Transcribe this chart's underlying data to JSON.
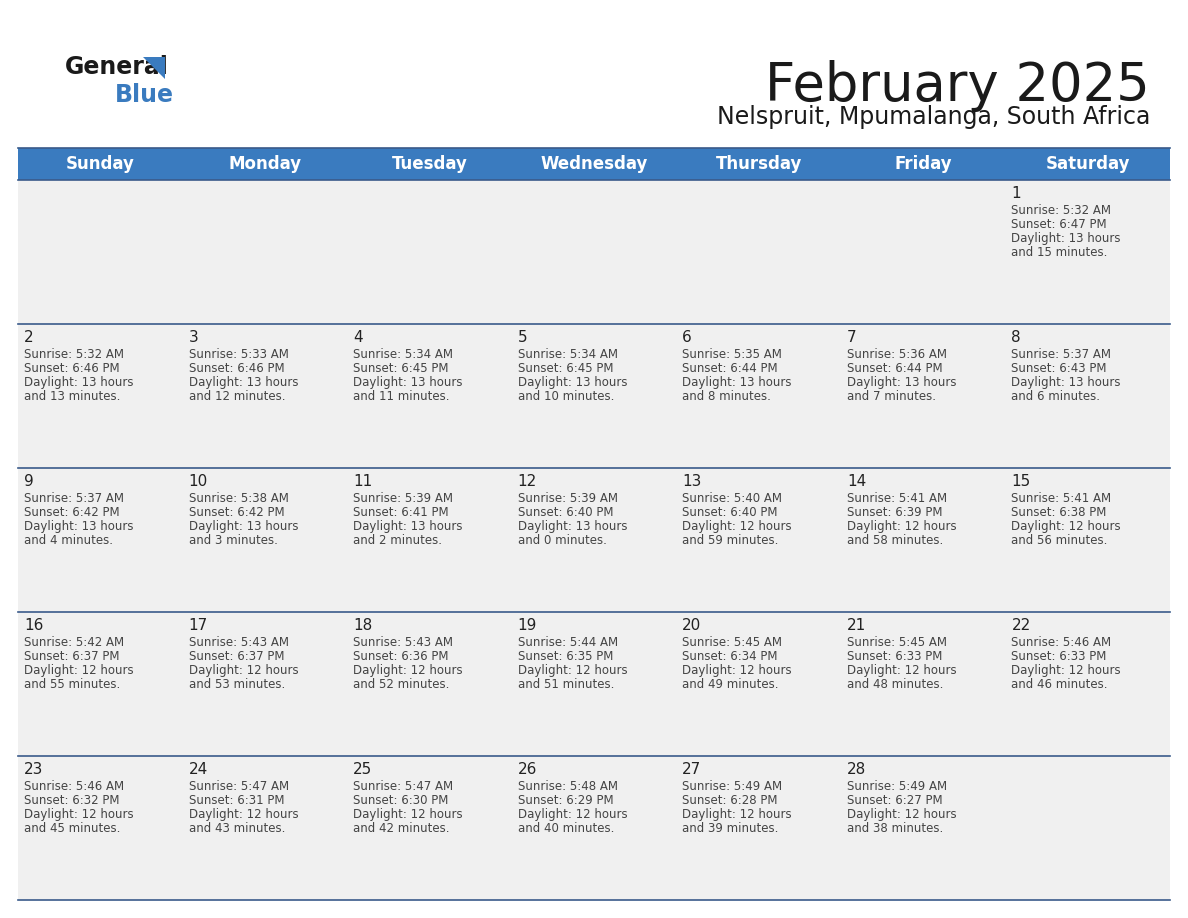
{
  "title": "February 2025",
  "subtitle": "Nelspruit, Mpumalanga, South Africa",
  "header_color": "#3a7bbf",
  "header_text_color": "#ffffff",
  "background_color": "#ffffff",
  "cell_bg": "#f0f0f0",
  "row_separator_color": "#3a5a8a",
  "day_headers": [
    "Sunday",
    "Monday",
    "Tuesday",
    "Wednesday",
    "Thursday",
    "Friday",
    "Saturday"
  ],
  "title_fontsize": 38,
  "subtitle_fontsize": 17,
  "header_fontsize": 12,
  "day_num_fontsize": 11,
  "cell_fontsize": 8.5,
  "days": [
    {
      "day": 1,
      "col": 6,
      "row": 0,
      "sunrise": "5:32 AM",
      "sunset": "6:47 PM",
      "daylight": "13 hours and 15 minutes."
    },
    {
      "day": 2,
      "col": 0,
      "row": 1,
      "sunrise": "5:32 AM",
      "sunset": "6:46 PM",
      "daylight": "13 hours and 13 minutes."
    },
    {
      "day": 3,
      "col": 1,
      "row": 1,
      "sunrise": "5:33 AM",
      "sunset": "6:46 PM",
      "daylight": "13 hours and 12 minutes."
    },
    {
      "day": 4,
      "col": 2,
      "row": 1,
      "sunrise": "5:34 AM",
      "sunset": "6:45 PM",
      "daylight": "13 hours and 11 minutes."
    },
    {
      "day": 5,
      "col": 3,
      "row": 1,
      "sunrise": "5:34 AM",
      "sunset": "6:45 PM",
      "daylight": "13 hours and 10 minutes."
    },
    {
      "day": 6,
      "col": 4,
      "row": 1,
      "sunrise": "5:35 AM",
      "sunset": "6:44 PM",
      "daylight": "13 hours and 8 minutes."
    },
    {
      "day": 7,
      "col": 5,
      "row": 1,
      "sunrise": "5:36 AM",
      "sunset": "6:44 PM",
      "daylight": "13 hours and 7 minutes."
    },
    {
      "day": 8,
      "col": 6,
      "row": 1,
      "sunrise": "5:37 AM",
      "sunset": "6:43 PM",
      "daylight": "13 hours and 6 minutes."
    },
    {
      "day": 9,
      "col": 0,
      "row": 2,
      "sunrise": "5:37 AM",
      "sunset": "6:42 PM",
      "daylight": "13 hours and 4 minutes."
    },
    {
      "day": 10,
      "col": 1,
      "row": 2,
      "sunrise": "5:38 AM",
      "sunset": "6:42 PM",
      "daylight": "13 hours and 3 minutes."
    },
    {
      "day": 11,
      "col": 2,
      "row": 2,
      "sunrise": "5:39 AM",
      "sunset": "6:41 PM",
      "daylight": "13 hours and 2 minutes."
    },
    {
      "day": 12,
      "col": 3,
      "row": 2,
      "sunrise": "5:39 AM",
      "sunset": "6:40 PM",
      "daylight": "13 hours and 0 minutes."
    },
    {
      "day": 13,
      "col": 4,
      "row": 2,
      "sunrise": "5:40 AM",
      "sunset": "6:40 PM",
      "daylight": "12 hours and 59 minutes."
    },
    {
      "day": 14,
      "col": 5,
      "row": 2,
      "sunrise": "5:41 AM",
      "sunset": "6:39 PM",
      "daylight": "12 hours and 58 minutes."
    },
    {
      "day": 15,
      "col": 6,
      "row": 2,
      "sunrise": "5:41 AM",
      "sunset": "6:38 PM",
      "daylight": "12 hours and 56 minutes."
    },
    {
      "day": 16,
      "col": 0,
      "row": 3,
      "sunrise": "5:42 AM",
      "sunset": "6:37 PM",
      "daylight": "12 hours and 55 minutes."
    },
    {
      "day": 17,
      "col": 1,
      "row": 3,
      "sunrise": "5:43 AM",
      "sunset": "6:37 PM",
      "daylight": "12 hours and 53 minutes."
    },
    {
      "day": 18,
      "col": 2,
      "row": 3,
      "sunrise": "5:43 AM",
      "sunset": "6:36 PM",
      "daylight": "12 hours and 52 minutes."
    },
    {
      "day": 19,
      "col": 3,
      "row": 3,
      "sunrise": "5:44 AM",
      "sunset": "6:35 PM",
      "daylight": "12 hours and 51 minutes."
    },
    {
      "day": 20,
      "col": 4,
      "row": 3,
      "sunrise": "5:45 AM",
      "sunset": "6:34 PM",
      "daylight": "12 hours and 49 minutes."
    },
    {
      "day": 21,
      "col": 5,
      "row": 3,
      "sunrise": "5:45 AM",
      "sunset": "6:33 PM",
      "daylight": "12 hours and 48 minutes."
    },
    {
      "day": 22,
      "col": 6,
      "row": 3,
      "sunrise": "5:46 AM",
      "sunset": "6:33 PM",
      "daylight": "12 hours and 46 minutes."
    },
    {
      "day": 23,
      "col": 0,
      "row": 4,
      "sunrise": "5:46 AM",
      "sunset": "6:32 PM",
      "daylight": "12 hours and 45 minutes."
    },
    {
      "day": 24,
      "col": 1,
      "row": 4,
      "sunrise": "5:47 AM",
      "sunset": "6:31 PM",
      "daylight": "12 hours and 43 minutes."
    },
    {
      "day": 25,
      "col": 2,
      "row": 4,
      "sunrise": "5:47 AM",
      "sunset": "6:30 PM",
      "daylight": "12 hours and 42 minutes."
    },
    {
      "day": 26,
      "col": 3,
      "row": 4,
      "sunrise": "5:48 AM",
      "sunset": "6:29 PM",
      "daylight": "12 hours and 40 minutes."
    },
    {
      "day": 27,
      "col": 4,
      "row": 4,
      "sunrise": "5:49 AM",
      "sunset": "6:28 PM",
      "daylight": "12 hours and 39 minutes."
    },
    {
      "day": 28,
      "col": 5,
      "row": 4,
      "sunrise": "5:49 AM",
      "sunset": "6:27 PM",
      "daylight": "12 hours and 38 minutes."
    }
  ]
}
